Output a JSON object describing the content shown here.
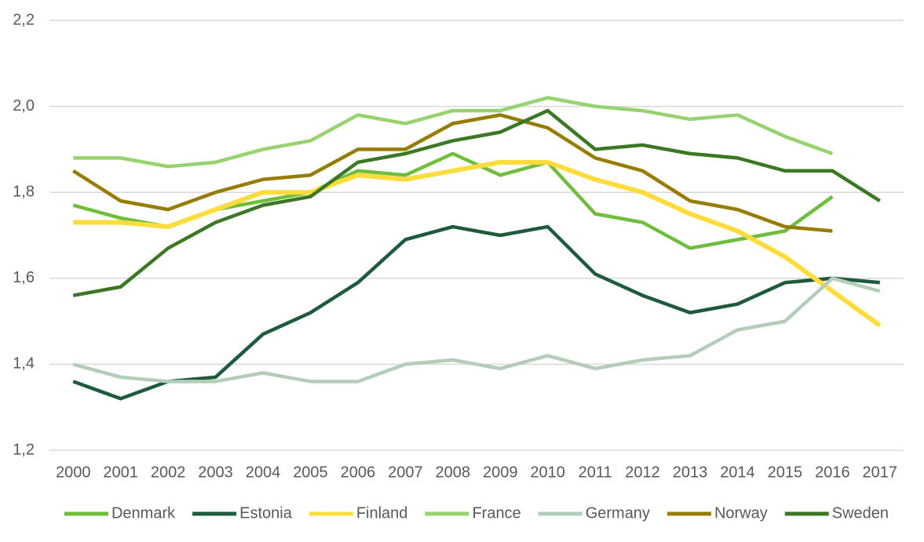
{
  "chart_data": {
    "type": "line",
    "categories": [
      "2000",
      "2001",
      "2002",
      "2003",
      "2004",
      "2005",
      "2006",
      "2007",
      "2008",
      "2009",
      "2010",
      "2011",
      "2012",
      "2013",
      "2014",
      "2015",
      "2016",
      "2017"
    ],
    "series": [
      {
        "name": "Denmark",
        "color": "#6ebe3c",
        "values": [
          1.77,
          1.74,
          1.72,
          1.76,
          1.78,
          1.8,
          1.85,
          1.84,
          1.89,
          1.84,
          1.87,
          1.75,
          1.73,
          1.67,
          1.69,
          1.71,
          1.79,
          null
        ]
      },
      {
        "name": "Estonia",
        "color": "#1e5a3c",
        "values": [
          1.36,
          1.32,
          1.36,
          1.37,
          1.47,
          1.52,
          1.59,
          1.69,
          1.72,
          1.7,
          1.72,
          1.61,
          1.56,
          1.52,
          1.54,
          1.59,
          1.6,
          1.59
        ]
      },
      {
        "name": "Finland",
        "color": "#fddc3c",
        "values": [
          1.73,
          1.73,
          1.72,
          1.76,
          1.8,
          1.8,
          1.84,
          1.83,
          1.85,
          1.87,
          1.87,
          1.83,
          1.8,
          1.75,
          1.71,
          1.65,
          1.57,
          1.49
        ]
      },
      {
        "name": "France",
        "color": "#96d26e",
        "values": [
          1.88,
          1.88,
          1.86,
          1.87,
          1.9,
          1.92,
          1.98,
          1.96,
          1.99,
          1.99,
          2.02,
          2.0,
          1.99,
          1.97,
          1.98,
          1.93,
          1.89,
          null
        ]
      },
      {
        "name": "Germany",
        "color": "#b4cdb9",
        "values": [
          1.4,
          1.37,
          1.36,
          1.36,
          1.38,
          1.36,
          1.36,
          1.4,
          1.41,
          1.39,
          1.42,
          1.39,
          1.41,
          1.42,
          1.48,
          1.5,
          1.6,
          1.57
        ]
      },
      {
        "name": "Norway",
        "color": "#967d00",
        "values": [
          1.85,
          1.78,
          1.76,
          1.8,
          1.83,
          1.84,
          1.9,
          1.9,
          1.96,
          1.98,
          1.95,
          1.88,
          1.85,
          1.78,
          1.76,
          1.72,
          1.71,
          null
        ]
      },
      {
        "name": "Sweden",
        "color": "#3c7823",
        "values": [
          1.56,
          1.58,
          1.67,
          1.73,
          1.77,
          1.79,
          1.87,
          1.89,
          1.92,
          1.94,
          1.99,
          1.9,
          1.91,
          1.89,
          1.88,
          1.85,
          1.85,
          1.78
        ]
      }
    ],
    "ylim": [
      1.2,
      2.2
    ],
    "yticks": [
      {
        "value": 1.2,
        "label": "1,2"
      },
      {
        "value": 1.4,
        "label": "1,4"
      },
      {
        "value": 1.6,
        "label": "1,6"
      },
      {
        "value": 1.8,
        "label": "1,8"
      },
      {
        "value": 2.0,
        "label": "2,0"
      },
      {
        "value": 2.2,
        "label": "2,2"
      }
    ],
    "grid": true,
    "legend": "bottom"
  }
}
